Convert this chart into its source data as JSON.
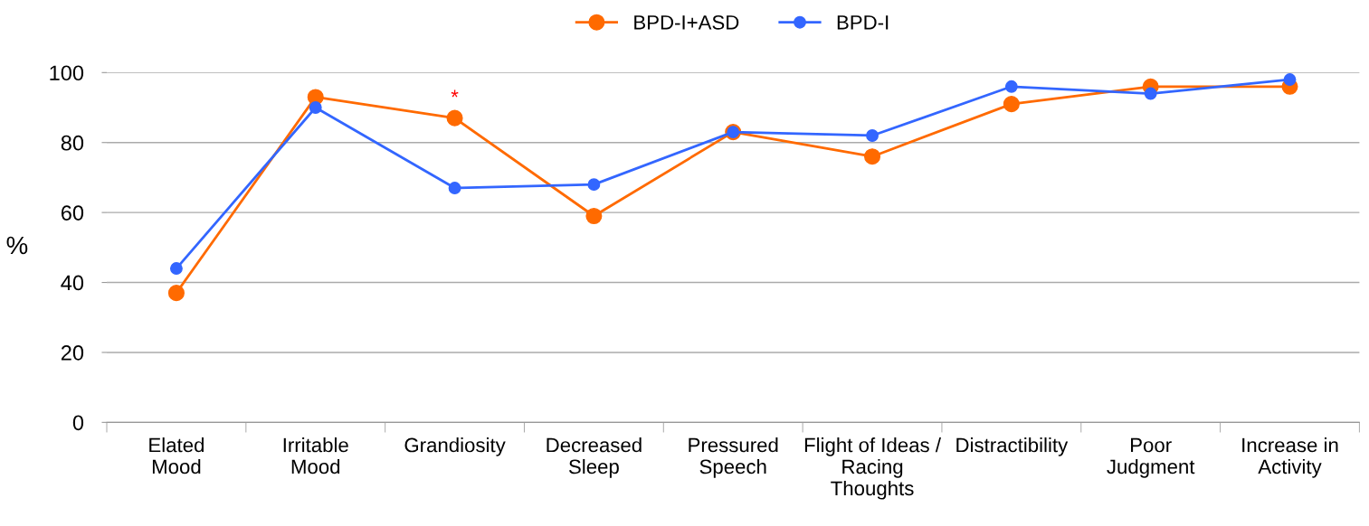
{
  "chart_data": {
    "type": "line",
    "categories": [
      "Elated\nMood",
      "Irritable\nMood",
      "Grandiosity",
      "Decreased\nSleep",
      "Pressured\nSpeech",
      "Flight of Ideas /\nRacing\nThoughts",
      "Distractibility",
      "Poor\nJudgment",
      "Increase in\nActivity"
    ],
    "series": [
      {
        "name": "BPD-I+ASD",
        "color": "#ff6a00",
        "values": [
          37,
          93,
          87,
          59,
          83,
          76,
          91,
          96,
          96
        ]
      },
      {
        "name": "BPD-I",
        "color": "#3366ff",
        "values": [
          44,
          90,
          67,
          68,
          83,
          82,
          96,
          94,
          98
        ]
      }
    ],
    "ylabel": "%",
    "ylim": [
      0,
      100
    ],
    "yticks": [
      0,
      20,
      40,
      60,
      80,
      100
    ],
    "grid": "y",
    "legend": "top",
    "marker": "circle",
    "line_style": "solid",
    "annotations": [
      {
        "text": "*",
        "x": "Grandiosity",
        "y": 87
      }
    ]
  }
}
